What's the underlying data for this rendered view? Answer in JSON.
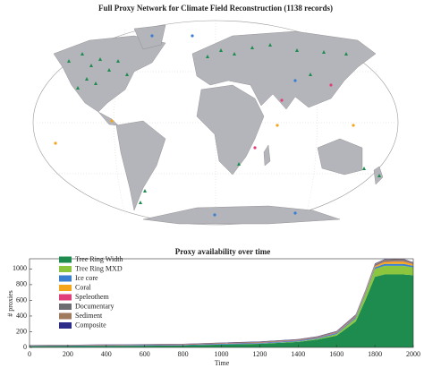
{
  "map": {
    "title": "Full Proxy Network for Climate Field Reconstruction (1138 records)"
  },
  "chart_data": {
    "type": "stacked_area",
    "title": "Proxy availability over time",
    "x_label": "Time",
    "y_label": "# proxies",
    "x": [
      0,
      200,
      400,
      600,
      800,
      1000,
      1200,
      1400,
      1500,
      1600,
      1700,
      1750,
      1800,
      1850,
      1900,
      1950,
      2000
    ],
    "series": [
      {
        "name": "Tree Ring Width",
        "color": "#1e8c4e",
        "values": [
          15,
          17,
          20,
          22,
          25,
          35,
          45,
          70,
          100,
          150,
          330,
          600,
          900,
          930,
          930,
          930,
          920
        ]
      },
      {
        "name": "Tree Ring MXD",
        "color": "#8cc63f",
        "values": [
          0,
          0,
          0,
          0,
          0,
          2,
          3,
          5,
          10,
          20,
          40,
          70,
          100,
          110,
          110,
          110,
          100
        ]
      },
      {
        "name": "Ice core",
        "color": "#3a7fd0",
        "values": [
          5,
          5,
          6,
          6,
          7,
          8,
          8,
          10,
          10,
          12,
          15,
          18,
          20,
          25,
          25,
          25,
          20
        ]
      },
      {
        "name": "Coral",
        "color": "#f4a51c",
        "values": [
          0,
          0,
          0,
          0,
          0,
          0,
          0,
          0,
          0,
          2,
          5,
          8,
          15,
          25,
          30,
          30,
          20
        ]
      },
      {
        "name": "Speleothem",
        "color": "#e03f7a",
        "values": [
          2,
          2,
          2,
          3,
          3,
          3,
          3,
          3,
          3,
          4,
          4,
          4,
          4,
          4,
          4,
          4,
          3
        ]
      },
      {
        "name": "Documentary",
        "color": "#6e6e72",
        "values": [
          0,
          0,
          0,
          0,
          0,
          1,
          2,
          3,
          4,
          5,
          10,
          12,
          15,
          15,
          15,
          15,
          10
        ]
      },
      {
        "name": "Sediment",
        "color": "#a07a5c",
        "values": [
          5,
          6,
          7,
          8,
          8,
          9,
          10,
          10,
          10,
          10,
          10,
          10,
          10,
          10,
          10,
          9,
          8
        ]
      },
      {
        "name": "Composite",
        "color": "#2b2b8a",
        "values": [
          3,
          3,
          3,
          3,
          3,
          4,
          4,
          4,
          4,
          5,
          5,
          5,
          6,
          6,
          6,
          6,
          5
        ]
      }
    ],
    "xlim": [
      0,
      2000
    ],
    "ylim": [
      0,
      1130
    ],
    "xticks": [
      0,
      200,
      400,
      600,
      800,
      1000,
      1200,
      1400,
      1600,
      1800,
      2000
    ],
    "yticks": [
      0,
      200,
      400,
      600,
      800,
      1000
    ],
    "legend": "upper left"
  }
}
